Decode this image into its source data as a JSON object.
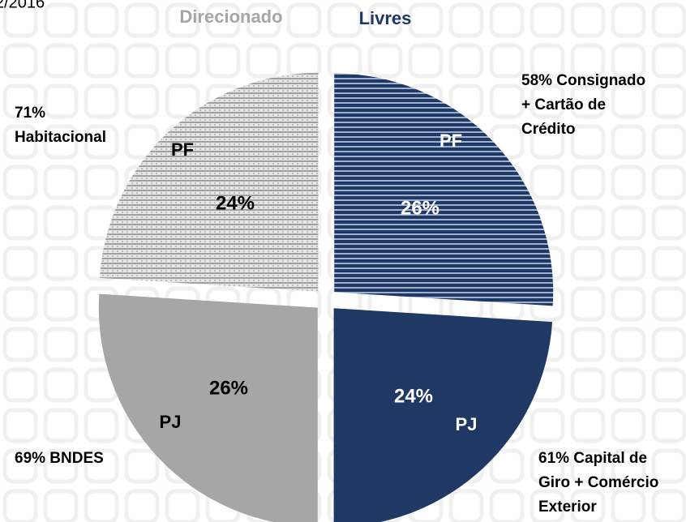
{
  "chart_data": {
    "type": "pie",
    "subtitle": "2/2016",
    "groups": [
      {
        "name": "Livres",
        "color": "#1f3864"
      },
      {
        "name": "Direcionado",
        "color": "#a6a6a6"
      }
    ],
    "categories": [
      "PF",
      "PJ",
      "PJ",
      "PF"
    ],
    "values": [
      26,
      24,
      26,
      24
    ],
    "value_labels": [
      "26%",
      "24%",
      "26%",
      "24%"
    ],
    "colors": [
      "#1f3864",
      "#1f3864",
      "#a6a6a6",
      "#d0d0d0"
    ],
    "patterned": [
      true,
      false,
      false,
      true
    ],
    "annotations": [
      [
        "58% Consignado",
        "+ Cartão de",
        "Crédito"
      ],
      [
        "61% Capital de",
        "Giro + Comércio",
        "Exterior"
      ],
      [
        "69% BNDES"
      ],
      [
        "71%",
        "Habitacional"
      ]
    ]
  }
}
